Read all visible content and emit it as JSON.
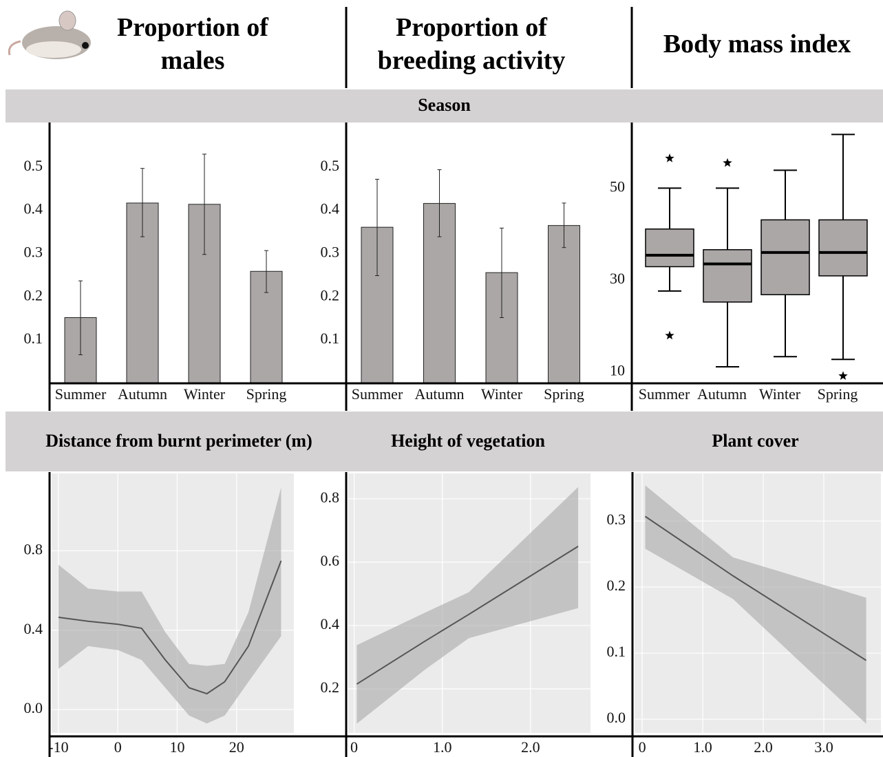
{
  "columns": [
    "Proportion of males",
    "Proportion of breeding activity",
    "Body mass index"
  ],
  "section": "Season",
  "chart_data": [
    {
      "type": "bar",
      "categories": [
        "Summer",
        "Autumn",
        "Winter",
        "Spring"
      ],
      "values": [
        0.152,
        0.417,
        0.414,
        0.259
      ],
      "ci_low": [
        0.066,
        0.339,
        0.298,
        0.21
      ],
      "ci_high": [
        0.237,
        0.497,
        0.53,
        0.307
      ],
      "color": "#aba7a6",
      "ylim": [
        0,
        0.6
      ],
      "yticks": [
        0.1,
        0.2,
        0.3,
        0.4,
        0.5
      ],
      "grid": false
    },
    {
      "type": "bar",
      "categories": [
        "Summer",
        "Autumn",
        "Winter",
        "Spring"
      ],
      "values": [
        0.361,
        0.416,
        0.256,
        0.365
      ],
      "ci_low": [
        0.249,
        0.339,
        0.152,
        0.314
      ],
      "ci_high": [
        0.472,
        0.494,
        0.359,
        0.417
      ],
      "color": "#aba7a6",
      "ylim": [
        0,
        0.6
      ],
      "yticks": [
        0.1,
        0.2,
        0.3,
        0.4,
        0.5
      ],
      "grid": false
    },
    {
      "type": "box",
      "categories": [
        "Summer",
        "Autumn",
        "Winter",
        "Spring"
      ],
      "whisker_low": [
        27.6,
        11.1,
        13.3,
        12.7
      ],
      "q1": [
        32.9,
        25.2,
        26.8,
        30.9
      ],
      "median": [
        35.4,
        33.5,
        36.0,
        36.0
      ],
      "q3": [
        41.1,
        36.6,
        43.1,
        43.1
      ],
      "whisker_high": [
        50,
        50,
        53.9,
        61.7
      ],
      "outliers": [
        [
          56.5,
          17.9
        ],
        [
          55.5
        ],
        [],
        [
          9.1
        ]
      ],
      "color": "#aba7a6",
      "ylim": [
        7.5,
        64
      ],
      "yticks": [
        10,
        30,
        50
      ],
      "grid": false
    },
    {
      "type": "line",
      "title": "Distance from burnt perimeter (m)",
      "x": [
        -10,
        -5,
        0,
        4,
        8,
        12,
        15,
        18,
        22,
        27.5
      ],
      "values": [
        0.465,
        0.445,
        0.43,
        0.41,
        0.25,
        0.11,
        0.08,
        0.14,
        0.32,
        0.75
      ],
      "upper": [
        0.73,
        0.61,
        0.595,
        0.595,
        0.39,
        0.23,
        0.22,
        0.23,
        0.49,
        1.12
      ],
      "lower": [
        0.205,
        0.32,
        0.3,
        0.25,
        0.11,
        -0.03,
        -0.07,
        -0.03,
        0.14,
        0.37
      ],
      "color": "#555555",
      "xlim": [
        -11.5,
        30
      ],
      "ylim": [
        -0.135,
        1.19
      ],
      "xticks": [
        -10,
        0,
        10,
        20
      ],
      "yticks": [
        {
          "value": 0,
          "label": "0.0"
        },
        0.4,
        0.8
      ],
      "grid": true
    },
    {
      "type": "line",
      "title": "Height of vegetation",
      "x": [
        0.03,
        0.8,
        1.3,
        2.54
      ],
      "values": [
        0.215,
        0.35,
        0.435,
        0.65
      ],
      "upper": [
        0.338,
        0.44,
        0.505,
        0.837
      ],
      "lower": [
        0.09,
        0.26,
        0.36,
        0.455
      ],
      "color": "#555555",
      "xlim": [
        -0.09,
        2.68
      ],
      "ylim": [
        0.05,
        0.88
      ],
      "xticks": [
        0,
        {
          "value": 1,
          "label": "1.0"
        },
        {
          "value": 2,
          "label": "2.0"
        }
      ],
      "yticks": [
        0.2,
        0.4,
        0.6,
        0.8
      ],
      "grid": true
    },
    {
      "type": "line",
      "title": "Plant cover",
      "x": [
        0.05,
        1.5,
        3.7
      ],
      "values": [
        0.307,
        0.217,
        0.089
      ],
      "upper": [
        0.354,
        0.245,
        0.184
      ],
      "lower": [
        0.258,
        0.182,
        -0.007
      ],
      "color": "#555555",
      "xlim": [
        -0.16,
        3.83
      ],
      "ylim": [
        -0.026,
        0.372
      ],
      "xticks": [
        0,
        {
          "value": 1,
          "label": "1.0"
        },
        {
          "value": 2,
          "label": "2.0"
        },
        {
          "value": 3,
          "label": "3.0"
        }
      ],
      "yticks": [
        {
          "value": 0,
          "label": "0.0"
        },
        0.1,
        0.2,
        0.3
      ],
      "grid": true
    }
  ]
}
